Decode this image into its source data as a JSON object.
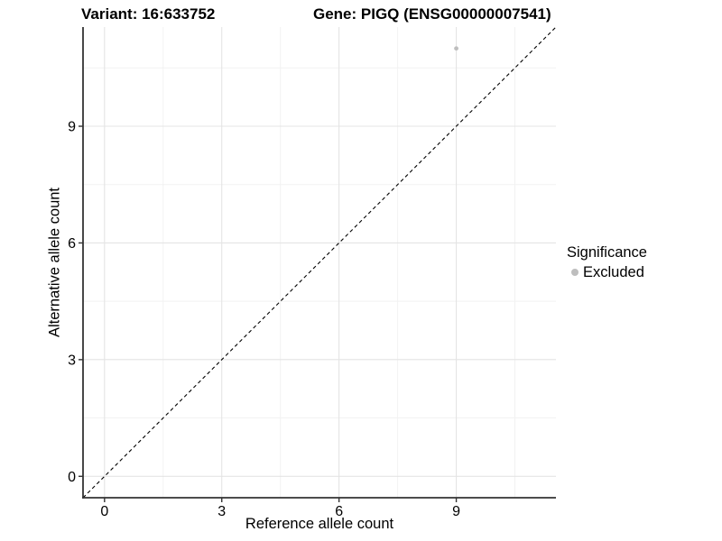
{
  "titles": {
    "variant": "Variant: 16:633752",
    "gene": "Gene: PIGQ (ENSG00000007541)"
  },
  "chart_data": {
    "type": "scatter",
    "xlabel": "Reference allele count",
    "ylabel": "Alternative allele count",
    "xlim": [
      -0.55,
      11.55
    ],
    "ylim": [
      -0.55,
      11.55
    ],
    "x_ticks": [
      0,
      3,
      6,
      9
    ],
    "y_ticks": [
      0,
      3,
      6,
      9
    ],
    "minor_gridlines": [
      1.5,
      4.5,
      7.5,
      10.5
    ],
    "grid": "on",
    "points": [
      {
        "x": 9,
        "y": 11,
        "series": "Excluded",
        "color": "#bebebe",
        "radius": 2.4
      }
    ],
    "reference_line": {
      "slope": 1,
      "intercept": 0,
      "style": "dashed",
      "color": "#000000"
    },
    "legend": {
      "title": "Significance",
      "position": "right",
      "entries": [
        {
          "label": "Excluded",
          "color": "#bebebe"
        }
      ]
    },
    "colors": {
      "major_grid": "#e4e4e4",
      "minor_grid": "#f2f2f2",
      "axis": "#333333",
      "tick": "#333333",
      "text": "#000000"
    }
  }
}
